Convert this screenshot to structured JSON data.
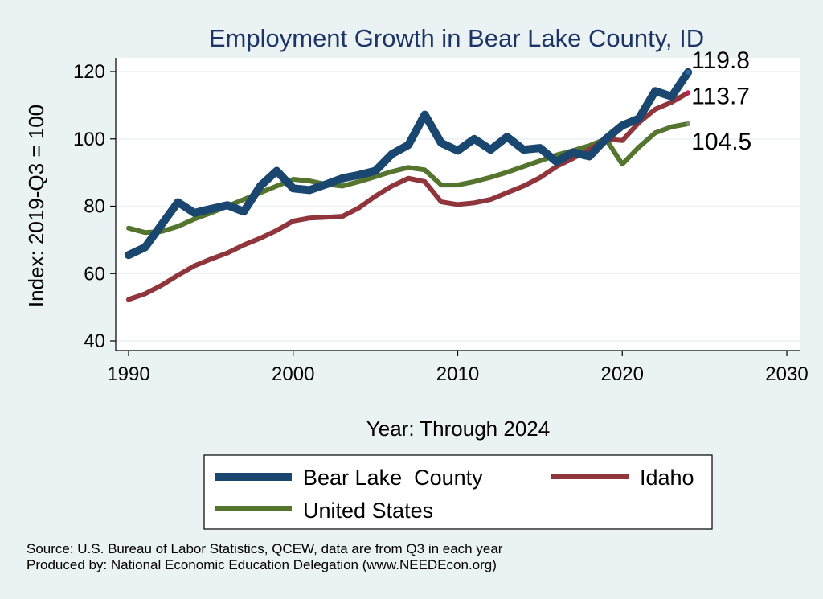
{
  "chart_data": {
    "type": "line",
    "title": "Employment Growth in Bear Lake County, ID",
    "xlabel": "Year: Through 2024",
    "ylabel": "Index: 2019-Q3 = 100",
    "xlim": [
      1990,
      2030
    ],
    "ylim": [
      40,
      120
    ],
    "xticks": [
      1990,
      2000,
      2010,
      2020,
      2030
    ],
    "yticks": [
      40,
      60,
      80,
      100,
      120
    ],
    "grid": true,
    "legend_position": "bottom",
    "x": [
      1990,
      1991,
      1992,
      1993,
      1994,
      1995,
      1996,
      1997,
      1998,
      1999,
      2000,
      2001,
      2002,
      2003,
      2004,
      2005,
      2006,
      2007,
      2008,
      2009,
      2010,
      2011,
      2012,
      2013,
      2014,
      2015,
      2016,
      2017,
      2018,
      2019,
      2020,
      2021,
      2022,
      2023,
      2024
    ],
    "series": [
      {
        "name": "Bear Lake  County",
        "color": "#1a476f",
        "style": "thick",
        "end_label": "119.8",
        "values": [
          65.5,
          67.8,
          74.5,
          81.2,
          78.0,
          79.2,
          80.3,
          78.4,
          86.0,
          90.5,
          85.3,
          84.8,
          86.5,
          88.3,
          89.3,
          90.5,
          95.5,
          98.2,
          107.2,
          98.8,
          96.5,
          100.0,
          96.8,
          100.6,
          96.8,
          97.3,
          93.2,
          96.0,
          94.8,
          100.0,
          104.0,
          106.0,
          114.2,
          112.6,
          119.8
        ]
      },
      {
        "name": "Idaho",
        "color": "#90353b",
        "style": "medium",
        "end_label": "113.7",
        "values": [
          52.3,
          54.0,
          56.5,
          59.5,
          62.3,
          64.3,
          66.1,
          68.5,
          70.5,
          72.8,
          75.6,
          76.5,
          76.7,
          77.0,
          79.5,
          83.0,
          86.0,
          88.3,
          87.3,
          81.3,
          80.5,
          81.0,
          82.0,
          84.0,
          86.0,
          88.5,
          91.8,
          94.2,
          96.8,
          100.0,
          99.5,
          104.8,
          108.8,
          110.9,
          113.7
        ]
      },
      {
        "name": "United States",
        "color": "#55752f",
        "style": "medium",
        "end_label": "104.5",
        "values": [
          73.5,
          72.2,
          72.5,
          74.0,
          76.2,
          78.0,
          80.0,
          82.0,
          84.0,
          86.0,
          88.0,
          87.5,
          86.5,
          86.0,
          87.3,
          88.8,
          90.3,
          91.5,
          90.8,
          86.3,
          86.3,
          87.3,
          88.6,
          90.1,
          91.8,
          93.5,
          95.2,
          96.5,
          98.0,
          100.0,
          92.5,
          97.5,
          101.8,
          103.6,
          104.5
        ]
      }
    ]
  },
  "source_note": {
    "line1": "Source: U.S. Bureau of Labor Statistics, QCEW, data are from Q3 in each year",
    "line2": "Produced by: National Economic Education Delegation (www.NEEDEcon.org)"
  }
}
